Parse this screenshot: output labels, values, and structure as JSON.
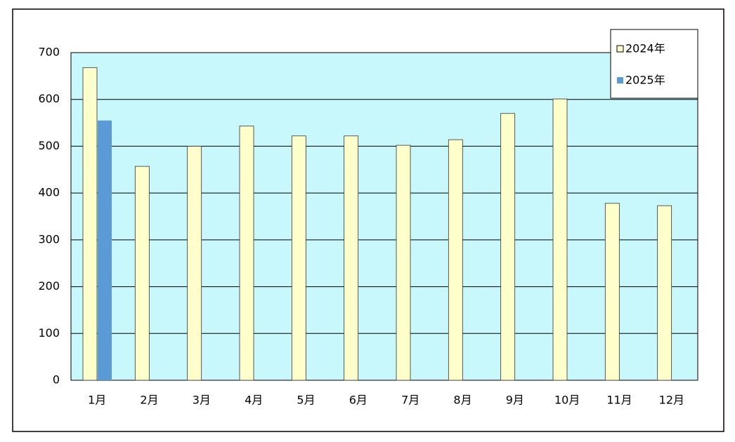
{
  "chart_data": {
    "type": "bar",
    "categories": [
      "1月",
      "2月",
      "3月",
      "4月",
      "5月",
      "6月",
      "7月",
      "8月",
      "9月",
      "10月",
      "11月",
      "12月"
    ],
    "series": [
      {
        "name": "2024年",
        "color": "#ffffcc",
        "values": [
          668,
          457,
          500,
          543,
          522,
          522,
          502,
          514,
          570,
          601,
          378,
          373
        ]
      },
      {
        "name": "2025年",
        "color": "#5b9bd5",
        "values": [
          555,
          null,
          null,
          null,
          null,
          null,
          null,
          null,
          null,
          null,
          null,
          null
        ]
      }
    ],
    "ylim": [
      0,
      700
    ],
    "yticks": [
      0,
      100,
      200,
      300,
      400,
      500,
      600,
      700
    ],
    "grid": true,
    "plot_background": "#c8f8fb",
    "legend": "top-right"
  }
}
